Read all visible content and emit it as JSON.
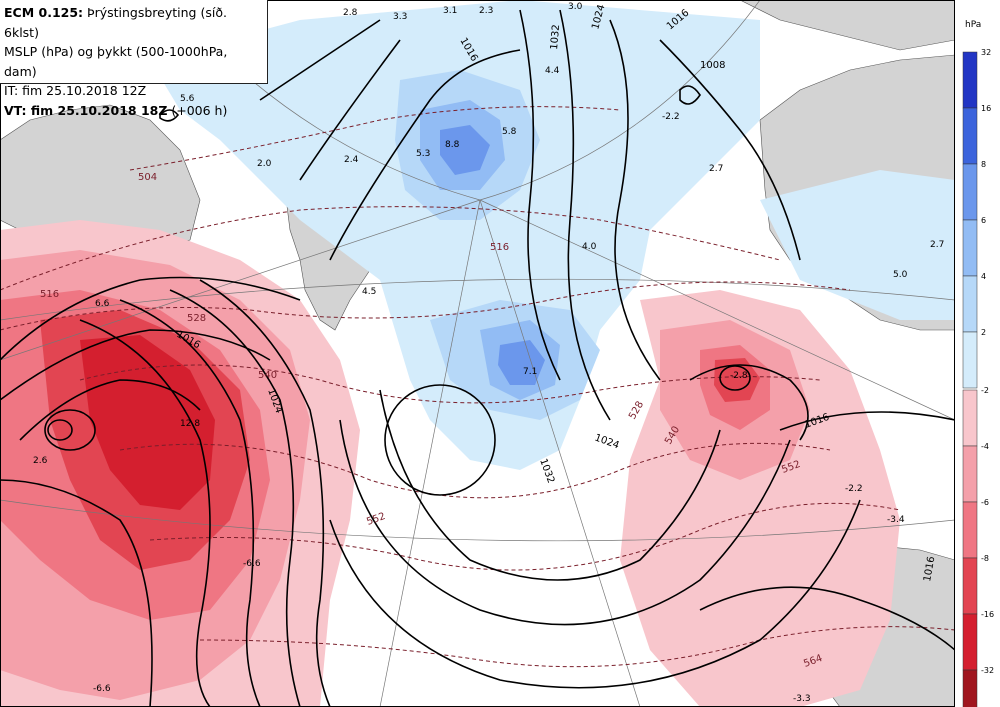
{
  "header": {
    "line1_bold": "ECM 0.125:",
    "line1_rest": " Þrýstingsbreyting (síð. 6klst)",
    "line2": "MSLP (hPa) og þykkt (500-1000hPa, dam)",
    "line3": "IT: fim 25.10.2018 12Z",
    "line4_bold": "VT: fim 25.10.2018 18Z",
    "line4_rest": " (+006 h)"
  },
  "legend": {
    "unit": "hPa",
    "rise_ticks": [
      "32",
      "16",
      "8",
      "6",
      "4",
      "2"
    ],
    "rise_colors": [
      "#2236c4",
      "#3c64dc",
      "#6b97ec",
      "#92bcf4",
      "#b6d8f8",
      "#d4ecfb"
    ],
    "fall_ticks": [
      "-2",
      "-4",
      "-6",
      "-8",
      "-16",
      "-32"
    ],
    "fall_colors": [
      "#f8c6cc",
      "#f4a0aa",
      "#ef7683",
      "#e24552",
      "#d41f2f",
      "#a0161f"
    ]
  },
  "colors": {
    "land": "#d3d3d3",
    "sea": "#ffffff",
    "isobar": "#000000",
    "thickness": "#7a1f2b"
  },
  "labels": {
    "pressure_change": [
      "2.8",
      "3.3",
      "3.1",
      "2.3",
      "3.0",
      "5.6",
      "2.0",
      "2.4",
      "5.3",
      "8.8",
      "5.8",
      "4.4",
      "2.7",
      "-2.2",
      "4.0",
      "2.7",
      "5.0",
      "4.5",
      "6.6",
      "7.1",
      "2.6",
      "12.8",
      "-2.8",
      "-6.6",
      "-3.4",
      "-2.2",
      "-3.3"
    ],
    "isobars": [
      "1016",
      "1024",
      "1016",
      "1008",
      "1032",
      "1016",
      "1024",
      "1032",
      "1024",
      "1016",
      "1016"
    ],
    "thickness": [
      "504",
      "516",
      "528",
      "516",
      "540",
      "528",
      "540",
      "552",
      "552",
      "564"
    ]
  }
}
